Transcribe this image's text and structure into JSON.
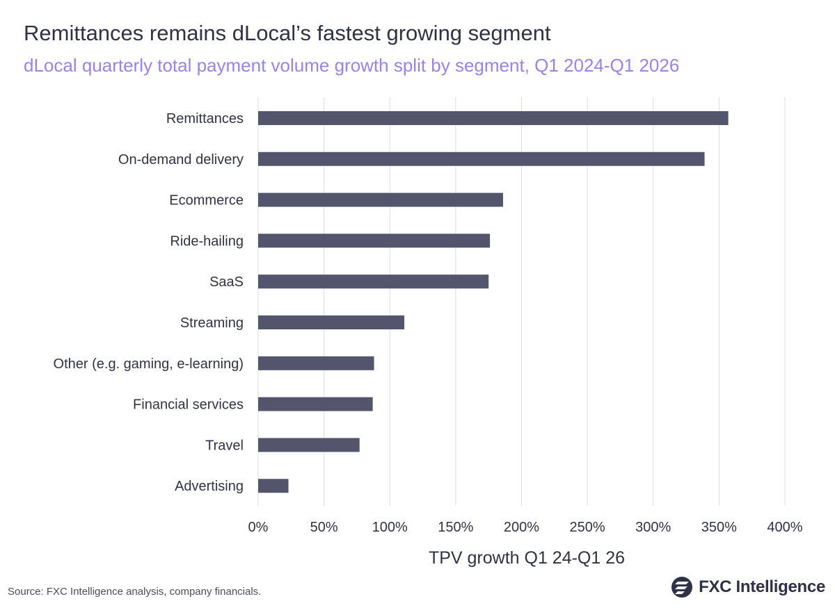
{
  "title": "Remittances remains dLocal’s fastest growing segment",
  "subtitle": "dLocal quarterly total payment volume growth split by segment, Q1 2024-Q1 2026",
  "source": "Source: FXC Intelligence analysis, company financials.",
  "brand": {
    "name": "FXC Intelligence",
    "icon": "fxc-logo-icon"
  },
  "colors": {
    "bar": "#52556c",
    "grid": "#dddddd",
    "title": "#2f3146",
    "subtitle": "#9b80f2"
  },
  "chart_data": {
    "type": "bar",
    "orientation": "horizontal",
    "categories": [
      "Remittances",
      "On-demand delivery",
      "Ecommerce",
      "Ride-hailing",
      "SaaS",
      "Streaming",
      "Other (e.g. gaming, e-learning)",
      "Financial services",
      "Travel",
      "Advertising"
    ],
    "values": [
      357,
      339,
      186,
      176,
      175,
      111,
      88,
      87,
      77,
      23
    ],
    "xlim": [
      0,
      400
    ],
    "xticks": [
      0,
      50,
      100,
      150,
      200,
      250,
      300,
      350,
      400
    ],
    "xtick_labels": [
      "0%",
      "50%",
      "100%",
      "150%",
      "200%",
      "250%",
      "300%",
      "350%",
      "400%"
    ],
    "xlabel": "TPV growth Q1 24-Q1 26",
    "grid": true,
    "legend": "none"
  }
}
